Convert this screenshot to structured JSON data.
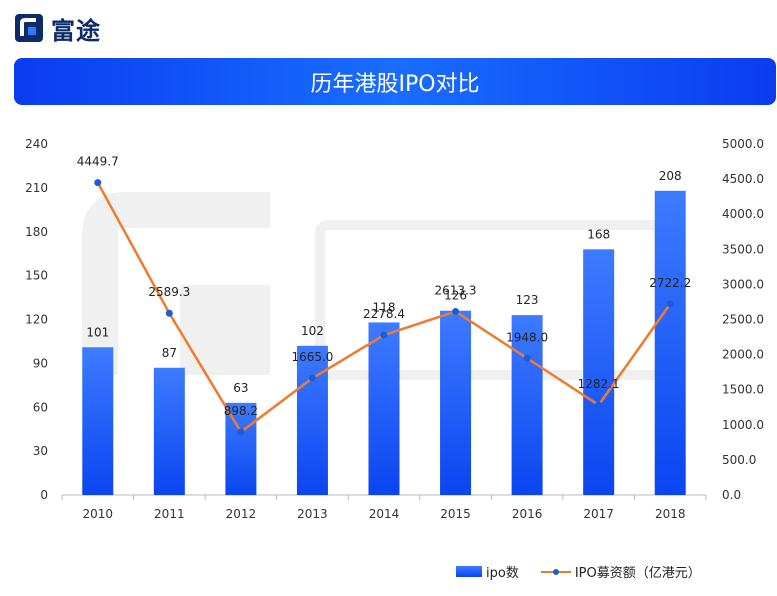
{
  "brand": {
    "name": "富途"
  },
  "banner": {
    "title": "历年港股IPO对比"
  },
  "colors": {
    "bar": "#0a45f0",
    "bar_light": "#3d7bff",
    "line": "#f07a2e",
    "marker": "#1a5dd8",
    "watermark": "#f0f0f0"
  },
  "chart_data": {
    "type": "bar",
    "title": "历年港股IPO对比",
    "categories": [
      "2010",
      "2011",
      "2012",
      "2013",
      "2014",
      "2015",
      "2016",
      "2017",
      "2018"
    ],
    "series": [
      {
        "name": "ipo数",
        "type": "bar",
        "axis": "left",
        "values": [
          101,
          87,
          63,
          102,
          118,
          126,
          123,
          168,
          208
        ],
        "labels": [
          "101",
          "87",
          "63",
          "102",
          "118",
          "126",
          "123",
          "168",
          "208"
        ]
      },
      {
        "name": "IPO募资额（亿港元）",
        "type": "line",
        "axis": "right",
        "values": [
          4449.7,
          2589.3,
          898.2,
          1665.0,
          2278.4,
          2613.3,
          1948.0,
          1282.1,
          2722.2
        ],
        "labels": [
          "4449.7",
          "2589.3",
          "898.2",
          "1665.0",
          "2278.4",
          "2613.3",
          "1948.0",
          "1282.1",
          "2722.2"
        ]
      }
    ],
    "y_left": {
      "min": 0,
      "max": 240,
      "ticks": [
        "0",
        "30",
        "60",
        "90",
        "120",
        "150",
        "180",
        "210",
        "240"
      ]
    },
    "y_right": {
      "min": 0,
      "max": 5000,
      "ticks": [
        "0.0",
        "500.0",
        "1000.0",
        "1500.0",
        "2000.0",
        "2500.0",
        "3000.0",
        "3500.0",
        "4000.0",
        "4500.0",
        "5000.0"
      ]
    },
    "legend": "bottom-right",
    "grid": false
  }
}
